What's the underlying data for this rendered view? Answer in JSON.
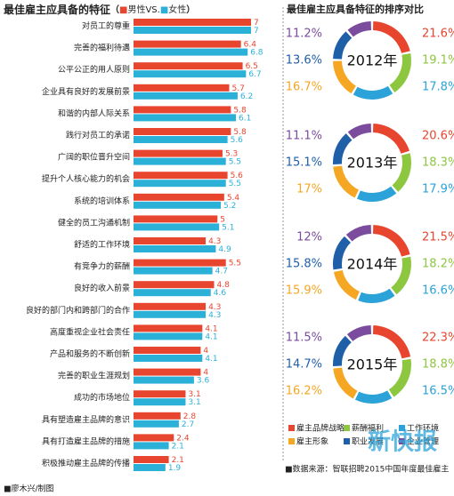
{
  "chart_data": [
    {
      "type": "bar",
      "orientation": "horizontal",
      "title": "最佳雇主应具备的特征",
      "legend_open": "（",
      "legend_separator": "VS.",
      "legend_close": "）",
      "categories": [
        "对员工的尊重",
        "完善的福利待遇",
        "公平公正的用人原则",
        "企业具有良好的发展前景",
        "和谐的内部人际关系",
        "践行对员工的承诺",
        "广阔的职位晋升空间",
        "提升个人核心能力的机会",
        "系统的培训体系",
        "健全的员工沟通机制",
        "舒适的工作环境",
        "有竞争力的薪酬",
        "良好的收入前景",
        "良好的部门内和跨部门的合作",
        "高度重视企业社会责任",
        "产品和服务的不断创新",
        "完善的职业生涯规划",
        "成功的市场地位",
        "具有塑造雇主品牌的意识",
        "具有打造雇主品牌的措施",
        "积极推动雇主品牌的传播"
      ],
      "series": [
        {
          "name": "男性",
          "color": "#e8452f",
          "values": [
            7,
            6.4,
            6.5,
            5.7,
            5.8,
            5.8,
            5.3,
            5.6,
            5.4,
            5,
            4.3,
            5.5,
            4.8,
            4.3,
            4.1,
            4,
            4,
            3.1,
            2.8,
            2.4,
            2.1
          ]
        },
        {
          "name": "女性",
          "color": "#2bb0d8",
          "values": [
            7,
            6.8,
            6.7,
            6.2,
            6.1,
            5.6,
            5.5,
            5.5,
            5.2,
            5.1,
            4.9,
            4.7,
            4.6,
            4.3,
            4.1,
            4.1,
            3.6,
            3.1,
            2.7,
            2.1,
            1.9
          ]
        }
      ]
    },
    {
      "type": "pie",
      "donut": true,
      "title": "最佳雇主应具备特征的排序对比",
      "center_label": "2012年",
      "categories": [
        "雇主品牌战略",
        "薪酬福利",
        "工作环境",
        "雇主形象",
        "职业发展",
        "企业管理"
      ],
      "colors": [
        "#e8452f",
        "#8dc63f",
        "#2ba3d8",
        "#f5a623",
        "#1f5fa8",
        "#7b4c9e"
      ],
      "values": [
        21.6,
        19.1,
        17.8,
        16.7,
        13.6,
        11.2
      ],
      "value_labels": [
        "21.6%",
        "19.1%",
        "17.8%",
        "16.7%",
        "13.6%",
        "11.2%"
      ]
    },
    {
      "type": "pie",
      "donut": true,
      "center_label": "2013年",
      "categories": [
        "雇主品牌战略",
        "薪酬福利",
        "工作环境",
        "雇主形象",
        "职业发展",
        "企业管理"
      ],
      "colors": [
        "#e8452f",
        "#8dc63f",
        "#2ba3d8",
        "#f5a623",
        "#1f5fa8",
        "#7b4c9e"
      ],
      "values": [
        20.6,
        18.3,
        17.9,
        17,
        15.1,
        11.1
      ],
      "value_labels": [
        "20.6%",
        "18.3%",
        "17.9%",
        "17%",
        "15.1%",
        "11.1%"
      ]
    },
    {
      "type": "pie",
      "donut": true,
      "center_label": "2014年",
      "categories": [
        "雇主品牌战略",
        "薪酬福利",
        "工作环境",
        "雇主形象",
        "职业发展",
        "企业管理"
      ],
      "colors": [
        "#e8452f",
        "#8dc63f",
        "#2ba3d8",
        "#f5a623",
        "#1f5fa8",
        "#7b4c9e"
      ],
      "values": [
        21.5,
        18.2,
        16.6,
        15.9,
        15.8,
        12
      ],
      "value_labels": [
        "21.5%",
        "18.2%",
        "16.6%",
        "15.9%",
        "15.8%",
        "12%"
      ]
    },
    {
      "type": "pie",
      "donut": true,
      "center_label": "2015年",
      "categories": [
        "雇主品牌战略",
        "薪酬福利",
        "工作环境",
        "雇主形象",
        "职业发展",
        "企业管理"
      ],
      "colors": [
        "#e8452f",
        "#8dc63f",
        "#2ba3d8",
        "#f5a623",
        "#1f5fa8",
        "#7b4c9e"
      ],
      "values": [
        22.3,
        18.8,
        16.5,
        16.2,
        14.7,
        11.5
      ],
      "value_labels": [
        "22.3%",
        "18.8%",
        "16.5%",
        "16.2%",
        "14.7%",
        "11.5%"
      ]
    }
  ],
  "source": "■数据来源：智联招聘2015中国年度最佳雇主",
  "credit": "■廖木兴/制图",
  "watermark": "新快报"
}
